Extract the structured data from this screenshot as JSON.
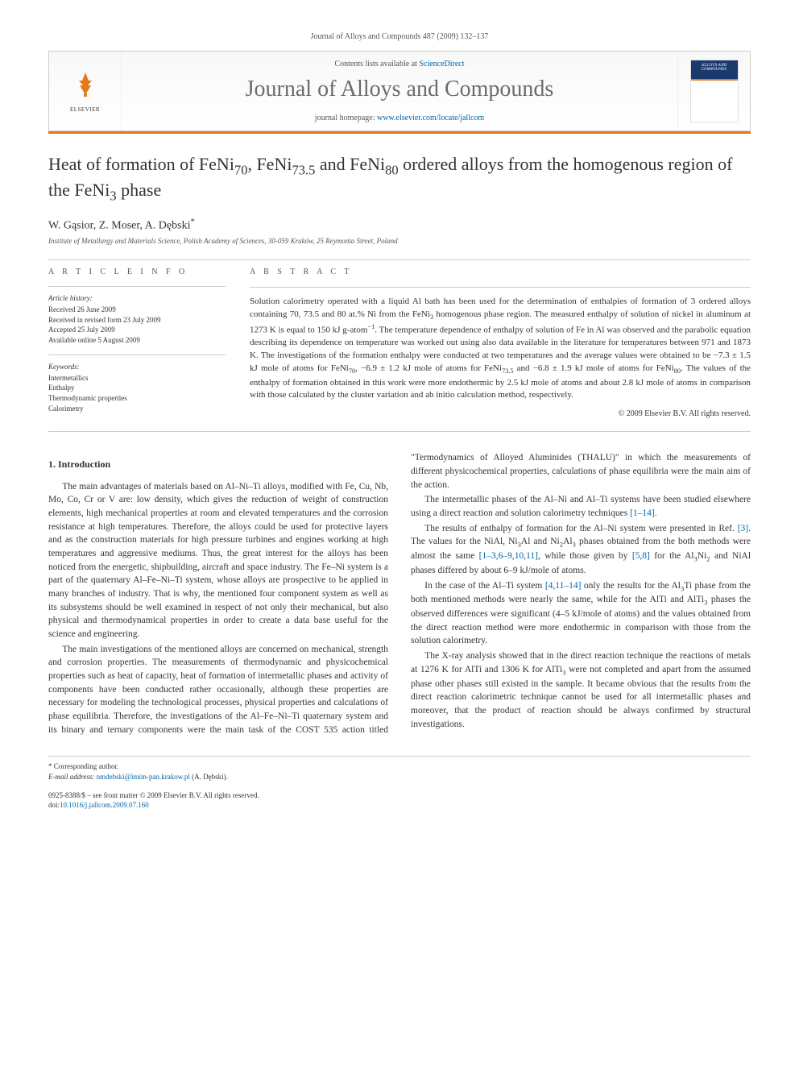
{
  "top_citation": "Journal of Alloys and Compounds 487 (2009) 132–137",
  "header": {
    "contents_prefix": "Contents lists available at ",
    "contents_link": "ScienceDirect",
    "journal_name": "Journal of Alloys and Compounds",
    "homepage_prefix": "journal homepage: ",
    "homepage_url": "www.elsevier.com/locate/jallcom",
    "publisher": "ELSEVIER",
    "cover_text": "ALLOYS AND COMPOUNDS"
  },
  "title_html": "Heat of formation of FeNi<sub>70</sub>, FeNi<sub>73.5</sub> and FeNi<sub>80</sub> ordered alloys from the homogenous region of the FeNi<sub>3</sub> phase",
  "authors_html": "W. Gąsior, Z. Moser, A. Dębski<sup>*</sup>",
  "affiliation": "Institute of Metallurgy and Materials Science, Polish Academy of Sciences, 30-059 Kraków, 25 Reymonta Street, Poland",
  "article_info": {
    "heading": "a r t i c l e   i n f o",
    "history_label": "Article history:",
    "history": [
      "Received 26 June 2009",
      "Received in revised form 23 July 2009",
      "Accepted 25 July 2009",
      "Available online 5 August 2009"
    ],
    "keywords_label": "Keywords:",
    "keywords": [
      "Intermetallics",
      "Enthalpy",
      "Thermodynamic properties",
      "Calorimetry"
    ]
  },
  "abstract": {
    "heading": "a b s t r a c t",
    "text_html": "Solution calorimetry operated with a liquid Al bath has been used for the determination of enthalpies of formation of 3 ordered alloys containing 70, 73.5 and 80 at.% Ni from the FeNi<sub>3</sub> homogenous phase region. The measured enthalpy of solution of nickel in aluminum at 1273 K is equal to 150 kJ g-atom<sup>−1</sup>. The temperature dependence of enthalpy of solution of Fe in Al was observed and the parabolic equation describing its dependence on temperature was worked out using also data available in the literature for temperatures between 971 and 1873 K. The investigations of the formation enthalpy were conducted at two temperatures and the average values were obtained to be −7.3 ± 1.5 kJ mole of atoms for FeNi<sub>70</sub>, −6.9 ± 1.2 kJ mole of atoms for FeNi<sub>73.5</sub> and −6.8 ± 1.9 kJ mole of atoms for FeNi<sub>80</sub>. The values of the enthalpy of formation obtained in this work were more endothermic by 2.5 kJ mole of atoms and about 2.8 kJ mole of atoms in comparison with those calculated by the cluster variation and ab initio calculation method, respectively.",
    "copyright": "© 2009 Elsevier B.V. All rights reserved."
  },
  "section1": {
    "heading": "1. Introduction",
    "paragraphs_html": [
      "The main advantages of materials based on Al–Ni–Ti alloys, modified with Fe, Cu, Nb, Mo, Co, Cr or V are: low density, which gives the reduction of weight of construction elements, high mechanical properties at room and elevated temperatures and the corrosion resistance at high temperatures. Therefore, the alloys could be used for protective layers and as the construction materials for high pressure turbines and engines working at high temperatures and aggressive mediums. Thus, the great interest for the alloys has been noticed from the energetic, shipbuilding, aircraft and space industry. The Fe–Ni system is a part of the quaternary Al–Fe–Ni–Ti system, whose alloys are prospective to be applied in many branches of industry. That is why, the mentioned four component system as well as its subsystems should be well examined in respect of not only their mechanical, but also physical and thermodynamical properties in order to create a data base useful for the science and engineering.",
      "The main investigations of the mentioned alloys are concerned on mechanical, strength and corrosion properties. The measurements of thermodynamic and physicochemical properties such as heat of capacity, heat of formation of intermetallic phases and activity of components have been conducted rather occasionally, although these properties are necessary for modeling the technological processes, physical properties and calculations of phase equilibria. Therefore, the investigations of the Al–Fe–Ni–Ti quaternary system and its binary and ternary components were the main task of the COST 535 action titled \"Termodynamics of Alloyed Aluminides (THALU)\" in which the measurements of different physicochemical properties, calculations of phase equilibria were the main aim of the action.",
      "The intermetallic phases of the Al–Ni and Al–Ti systems have been studied elsewhere using a direct reaction and solution calorimetry techniques <span class=\"ref-link\">[1–14]</span>.",
      "The results of enthalpy of formation for the Al–Ni system were presented in Ref. <span class=\"ref-link\">[3]</span>. The values for the NiAl, Ni<sub>3</sub>Al and Ni<sub>2</sub>Al<sub>3</sub> phases obtained from the both methods were almost the same <span class=\"ref-link\">[1–3,6–9,10,11]</span>, while those given by <span class=\"ref-link\">[5,8]</span> for the Al<sub>3</sub>Ni<sub>2</sub> and NiAl phases differed by about 6–9 kJ/mole of atoms.",
      "In the case of the Al–Ti system <span class=\"ref-link\">[4,11–14]</span> only the results for the Al<sub>3</sub>Ti phase from the both mentioned methods were nearly the same, while for the AlTi and AlTi<sub>3</sub> phases the observed differences were significant (4–5 kJ/mole of atoms) and the values obtained from the direct reaction method were more endothermic in comparison with those from the solution calorimetry.",
      "The X-ray analysis showed that in the direct reaction technique the reactions of metals at 1276 K for AlTi and 1306 K for AlTi<sub>3</sub> were not completed and apart from the assumed phase other phases still existed in the sample. It became obvious that the results from the direct reaction calorimetric technique cannot be used for all intermetallic phases and moreover, that the product of reaction should be always confirmed by structural investigations."
    ]
  },
  "footer": {
    "corresponding": "* Corresponding author.",
    "email_label": "E-mail address: ",
    "email": "nmdebski@imim-pan.krakow.pl",
    "email_suffix": " (A. Dębski).",
    "issn_line": "0925-8388/$ – see front matter © 2009 Elsevier B.V. All rights reserved.",
    "doi_label": "doi:",
    "doi": "10.1016/j.jallcom.2009.07.160"
  },
  "colors": {
    "accent": "#e67817",
    "link": "#0066aa",
    "rule": "#cccccc"
  }
}
